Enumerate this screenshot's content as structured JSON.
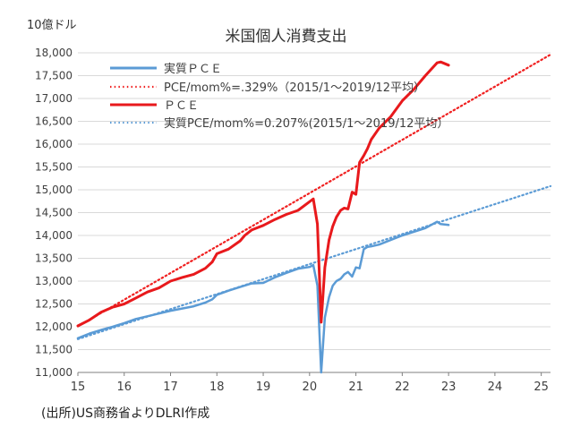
{
  "unit_label": "10億ドル",
  "source": "(出所)US商務省よりDLRI作成",
  "colors": {
    "pce": "#e8191c",
    "pce_trend": "#f02020",
    "real_pce": "#5b9bd5",
    "real_trend": "#5b9bd5",
    "grid": "#d9d9d9",
    "axis": "#7f7f7f"
  },
  "chart_data": {
    "type": "line",
    "title": "米国個人消費支出",
    "xlabel": "",
    "ylabel": "10億ドル",
    "x_ticks": [
      "15",
      "16",
      "17",
      "18",
      "19",
      "20",
      "21",
      "22",
      "23",
      "24",
      "25"
    ],
    "xlim": [
      15,
      25.2
    ],
    "ylim": [
      11000,
      18000
    ],
    "y_ticks": [
      "11,000",
      "11,500",
      "12,000",
      "12,500",
      "13,000",
      "13,500",
      "14,000",
      "14,500",
      "15,000",
      "15,500",
      "16,000",
      "16,500",
      "17,000",
      "17,500",
      "18,000"
    ],
    "y_tick_values": [
      11000,
      11500,
      12000,
      12500,
      13000,
      13500,
      14000,
      14500,
      15000,
      15500,
      16000,
      16500,
      17000,
      17500,
      18000
    ],
    "grid": true,
    "legend_position": "top-left",
    "series": [
      {
        "name": "実質ＰＣＥ",
        "style": "solid",
        "color": "#5b9bd5",
        "x": [
          15.0,
          15.25,
          15.5,
          15.75,
          16.0,
          16.25,
          16.5,
          16.75,
          17.0,
          17.25,
          17.5,
          17.75,
          17.9,
          18.0,
          18.25,
          18.5,
          18.75,
          19.0,
          19.25,
          19.5,
          19.75,
          20.0,
          20.08,
          20.17,
          20.25,
          20.33,
          20.42,
          20.5,
          20.58,
          20.67,
          20.75,
          20.83,
          20.92,
          21.0,
          21.08,
          21.17,
          21.25,
          21.33,
          21.5,
          21.75,
          22.0,
          22.25,
          22.5,
          22.75,
          22.83,
          23.0
        ],
        "y": [
          11750,
          11850,
          11930,
          12000,
          12080,
          12170,
          12230,
          12290,
          12350,
          12400,
          12450,
          12530,
          12600,
          12700,
          12790,
          12870,
          12950,
          12960,
          13080,
          13180,
          13270,
          13310,
          13350,
          12900,
          11000,
          12200,
          12650,
          12900,
          13000,
          13050,
          13150,
          13200,
          13100,
          13300,
          13280,
          13700,
          13750,
          13760,
          13800,
          13900,
          14000,
          14080,
          14160,
          14300,
          14250,
          14230
        ]
      },
      {
        "name": "PCE/mom%=.329%（2015/1～2019/12平均）",
        "style": "dotted",
        "color": "#f02020",
        "x": [
          15.0,
          25.2
        ],
        "y": [
          12010,
          17960
        ]
      },
      {
        "name": "ＰＣＥ",
        "style": "solid",
        "color": "#e8191c",
        "x": [
          15.0,
          15.25,
          15.5,
          15.75,
          16.0,
          16.25,
          16.5,
          16.75,
          17.0,
          17.25,
          17.5,
          17.75,
          17.9,
          18.0,
          18.25,
          18.5,
          18.6,
          18.75,
          19.0,
          19.25,
          19.5,
          19.75,
          20.0,
          20.08,
          20.17,
          20.25,
          20.33,
          20.42,
          20.5,
          20.58,
          20.67,
          20.75,
          20.83,
          20.92,
          21.0,
          21.08,
          21.17,
          21.25,
          21.33,
          21.5,
          21.75,
          22.0,
          22.25,
          22.5,
          22.75,
          22.83,
          23.0
        ],
        "y": [
          12020,
          12150,
          12320,
          12430,
          12500,
          12630,
          12760,
          12850,
          13000,
          13080,
          13150,
          13280,
          13420,
          13600,
          13700,
          13880,
          14000,
          14120,
          14220,
          14350,
          14460,
          14550,
          14740,
          14800,
          14250,
          12100,
          13300,
          13900,
          14200,
          14400,
          14550,
          14600,
          14580,
          14950,
          14900,
          15600,
          15750,
          15900,
          16100,
          16350,
          16600,
          16950,
          17200,
          17500,
          17780,
          17800,
          17730
        ]
      },
      {
        "name": "実質PCE/mom%=0.207%(2015/1～2019/12平均）",
        "style": "dotted",
        "color": "#5b9bd5",
        "x": [
          15.0,
          25.2
        ],
        "y": [
          11730,
          15080
        ]
      }
    ]
  }
}
